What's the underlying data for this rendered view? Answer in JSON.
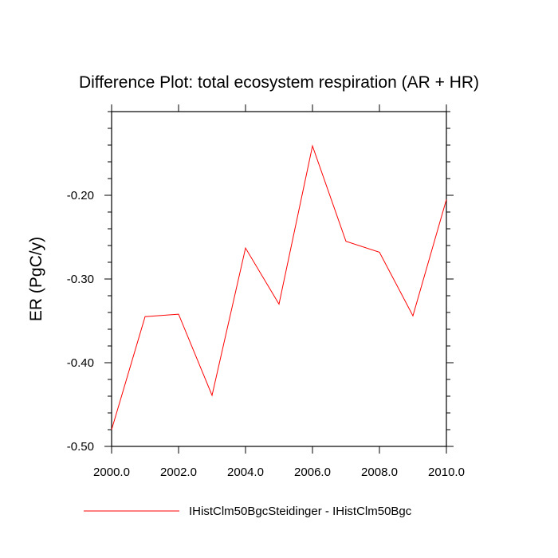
{
  "chart_data": {
    "type": "line",
    "title": "Difference Plot: total ecosystem respiration (AR + HR)",
    "ylabel": "ER  (PgC/y)",
    "xlabel": "",
    "xlim": [
      2000,
      2010
    ],
    "ylim": [
      -0.5,
      -0.1
    ],
    "x_ticks": [
      2000,
      2002,
      2004,
      2006,
      2008,
      2010
    ],
    "x_tick_labels": [
      "2000.0",
      "2002.0",
      "2004.0",
      "2006.0",
      "2008.0",
      "2010.0"
    ],
    "y_ticks": [
      -0.5,
      -0.4,
      -0.3,
      -0.2
    ],
    "y_tick_labels": [
      "-0.50",
      "-0.40",
      "-0.30",
      "-0.20"
    ],
    "grid": false,
    "legend_position": "bottom",
    "x": [
      2000,
      2001,
      2002,
      2003,
      2004,
      2005,
      2006,
      2007,
      2008,
      2009,
      2010
    ],
    "series": [
      {
        "name": "IHistClm50BgcSteidinger - IHistClm50Bgc",
        "color": "#ff0000",
        "values": [
          -0.48,
          -0.345,
          -0.342,
          -0.439,
          -0.263,
          -0.33,
          -0.141,
          -0.255,
          -0.268,
          -0.344,
          -0.205
        ]
      }
    ]
  }
}
